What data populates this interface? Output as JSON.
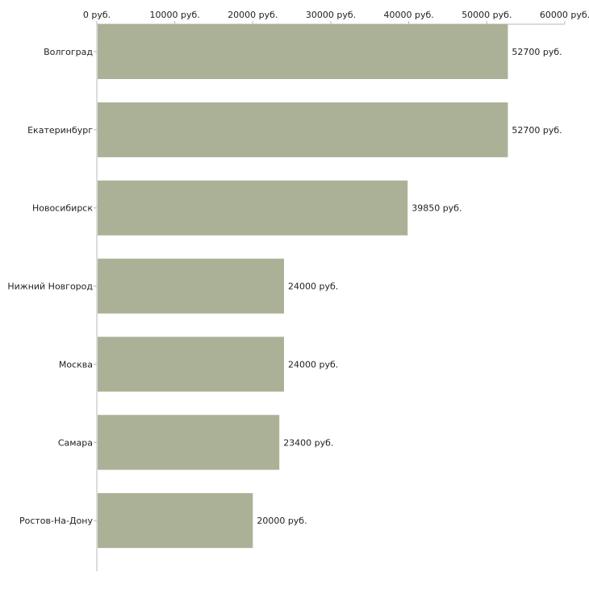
{
  "chart_data": {
    "type": "bar",
    "orientation": "horizontal",
    "title": "",
    "xlabel": "",
    "ylabel": "",
    "unit": "руб.",
    "xlim": [
      0,
      60000
    ],
    "x_ticks": [
      0,
      10000,
      20000,
      30000,
      40000,
      50000,
      60000
    ],
    "x_tick_labels": [
      "0 руб.",
      "10000 руб.",
      "20000 руб.",
      "30000 руб.",
      "40000 руб.",
      "50000 руб.",
      "60000 руб."
    ],
    "axis_position": "top",
    "grid": false,
    "categories": [
      "Волгоград",
      "Екатеринбург",
      "Новосибирск",
      "Нижний Новгород",
      "Москва",
      "Самара",
      "Ростов-На-Дону"
    ],
    "values": [
      52700,
      52700,
      39850,
      24000,
      24000,
      23400,
      20000
    ],
    "value_labels": [
      "52700 руб.",
      "52700 руб.",
      "39850 руб.",
      "24000 руб.",
      "24000 руб.",
      "23400 руб.",
      "20000 руб."
    ],
    "bar_color": "#abb197",
    "axis_color": "#b8b8b8"
  }
}
